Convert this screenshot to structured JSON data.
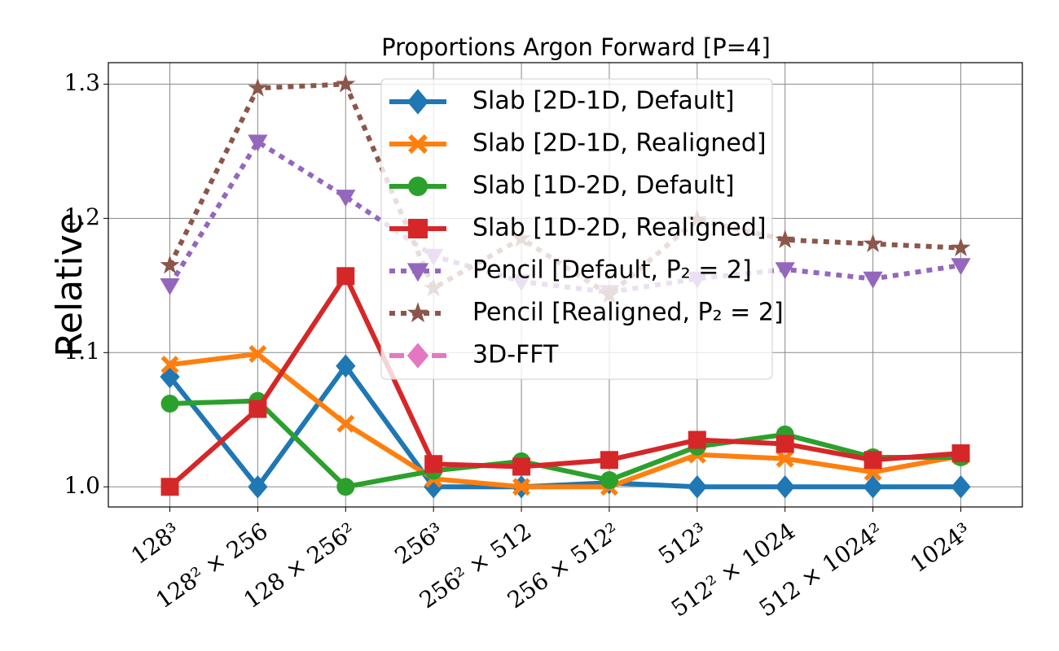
{
  "chart_data": {
    "type": "line",
    "title": "Proportions Argon Forward [P=4]",
    "ylabel": "Relative",
    "categories": [
      "128³",
      "128² × 256",
      "128 × 256²",
      "256³",
      "256² × 512",
      "256 × 512²",
      "512³",
      "512² × 1024",
      "512 × 1024²",
      "1024³"
    ],
    "ylim": [
      0.985,
      1.316
    ],
    "yticks": [
      {
        "value": 1,
        "label": "1.0"
      },
      1.1,
      1.2,
      1.3
    ],
    "grid": true,
    "legend": "upper center",
    "series": [
      {
        "name": "Slab [2D-1D, Default]",
        "color": "#1f77b4",
        "marker": "diamond",
        "style": "solid",
        "values": [
          1.082,
          1.0,
          1.09,
          1.0,
          1.0,
          1.003,
          1.0,
          1.0,
          1.0,
          1.0
        ]
      },
      {
        "name": "Slab [2D-1D, Realigned]",
        "color": "#ff7f0e",
        "marker": "x",
        "style": "solid",
        "values": [
          1.091,
          1.099,
          1.047,
          1.006,
          1.0,
          1.0,
          1.024,
          1.021,
          1.011,
          1.023
        ]
      },
      {
        "name": "Slab [1D-2D, Default]",
        "color": "#2ca02c",
        "marker": "circle",
        "style": "solid",
        "values": [
          1.062,
          1.064,
          1.0,
          1.012,
          1.019,
          1.005,
          1.03,
          1.039,
          1.022,
          1.022
        ]
      },
      {
        "name": "Slab [1D-2D, Realigned]",
        "color": "#d62728",
        "marker": "square",
        "style": "solid",
        "values": [
          1.0,
          1.058,
          1.157,
          1.017,
          1.015,
          1.02,
          1.035,
          1.032,
          1.02,
          1.025
        ]
      },
      {
        "name": "Pencil [Default, P₂ = 2]",
        "color": "#9467bd",
        "marker": "triangle-down",
        "style": "dotted",
        "values": [
          1.15,
          1.257,
          1.216,
          1.172,
          1.153,
          1.145,
          1.155,
          1.162,
          1.155,
          1.165
        ]
      },
      {
        "name": "Pencil [Realigned, P₂ = 2]",
        "color": "#8c564b",
        "marker": "star",
        "style": "dotted",
        "values": [
          1.165,
          1.297,
          1.3,
          1.148,
          1.185,
          1.143,
          1.199,
          1.184,
          1.181,
          1.178
        ]
      },
      {
        "name": "3D-FFT",
        "color": "#e377c2",
        "marker": "diamond",
        "style": "dashed",
        "values": [
          null,
          null,
          null,
          null,
          null,
          null,
          null,
          null,
          null,
          null
        ]
      }
    ]
  }
}
